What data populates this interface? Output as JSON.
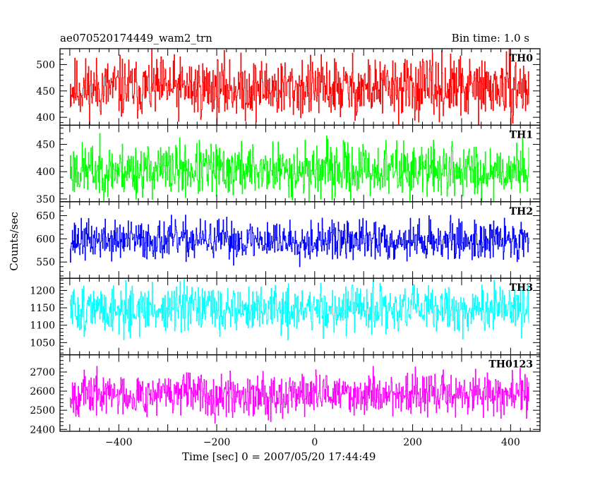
{
  "header": {
    "title": "ae070520174449_wam2_trn",
    "bin_time": "Bin time: 1.0 s"
  },
  "chart_data": {
    "type": "line",
    "xlabel": "Time [sec] 0 = 2007/05/20 17:44:49",
    "ylabel": "Counts/sec",
    "xlim": [
      -520,
      460
    ],
    "x_ticks": [
      -400,
      -200,
      0,
      200,
      400
    ],
    "x_tick_labels": [
      "−400",
      "−200",
      "0",
      "200",
      "400"
    ],
    "x_range": [
      -500,
      437
    ],
    "panels": [
      {
        "name": "TH0",
        "color": "#ff0000",
        "ylim": [
          385,
          530
        ],
        "yticks": [
          400,
          450,
          500
        ],
        "mean": 455,
        "amplitude": 38,
        "seed": 11
      },
      {
        "name": "TH1",
        "color": "#00ff00",
        "ylim": [
          345,
          485
        ],
        "yticks": [
          350,
          400,
          450
        ],
        "mean": 403,
        "amplitude": 32,
        "seed": 23
      },
      {
        "name": "TH2",
        "color": "#0000ff",
        "ylim": [
          515,
          680
        ],
        "yticks": [
          550,
          600,
          650
        ],
        "mean": 597,
        "amplitude": 28,
        "seed": 37
      },
      {
        "name": "TH3",
        "color": "#00ffff",
        "ylim": [
          1015,
          1235
        ],
        "yticks": [
          1050,
          1100,
          1150,
          1200
        ],
        "mean": 1145,
        "amplitude": 45,
        "seed": 51
      },
      {
        "name": "TH0123",
        "color": "#ff00ff",
        "ylim": [
          2390,
          2790
        ],
        "yticks": [
          2400,
          2500,
          2600,
          2700
        ],
        "mean": 2585,
        "amplitude": 72,
        "seed": 67
      }
    ]
  }
}
